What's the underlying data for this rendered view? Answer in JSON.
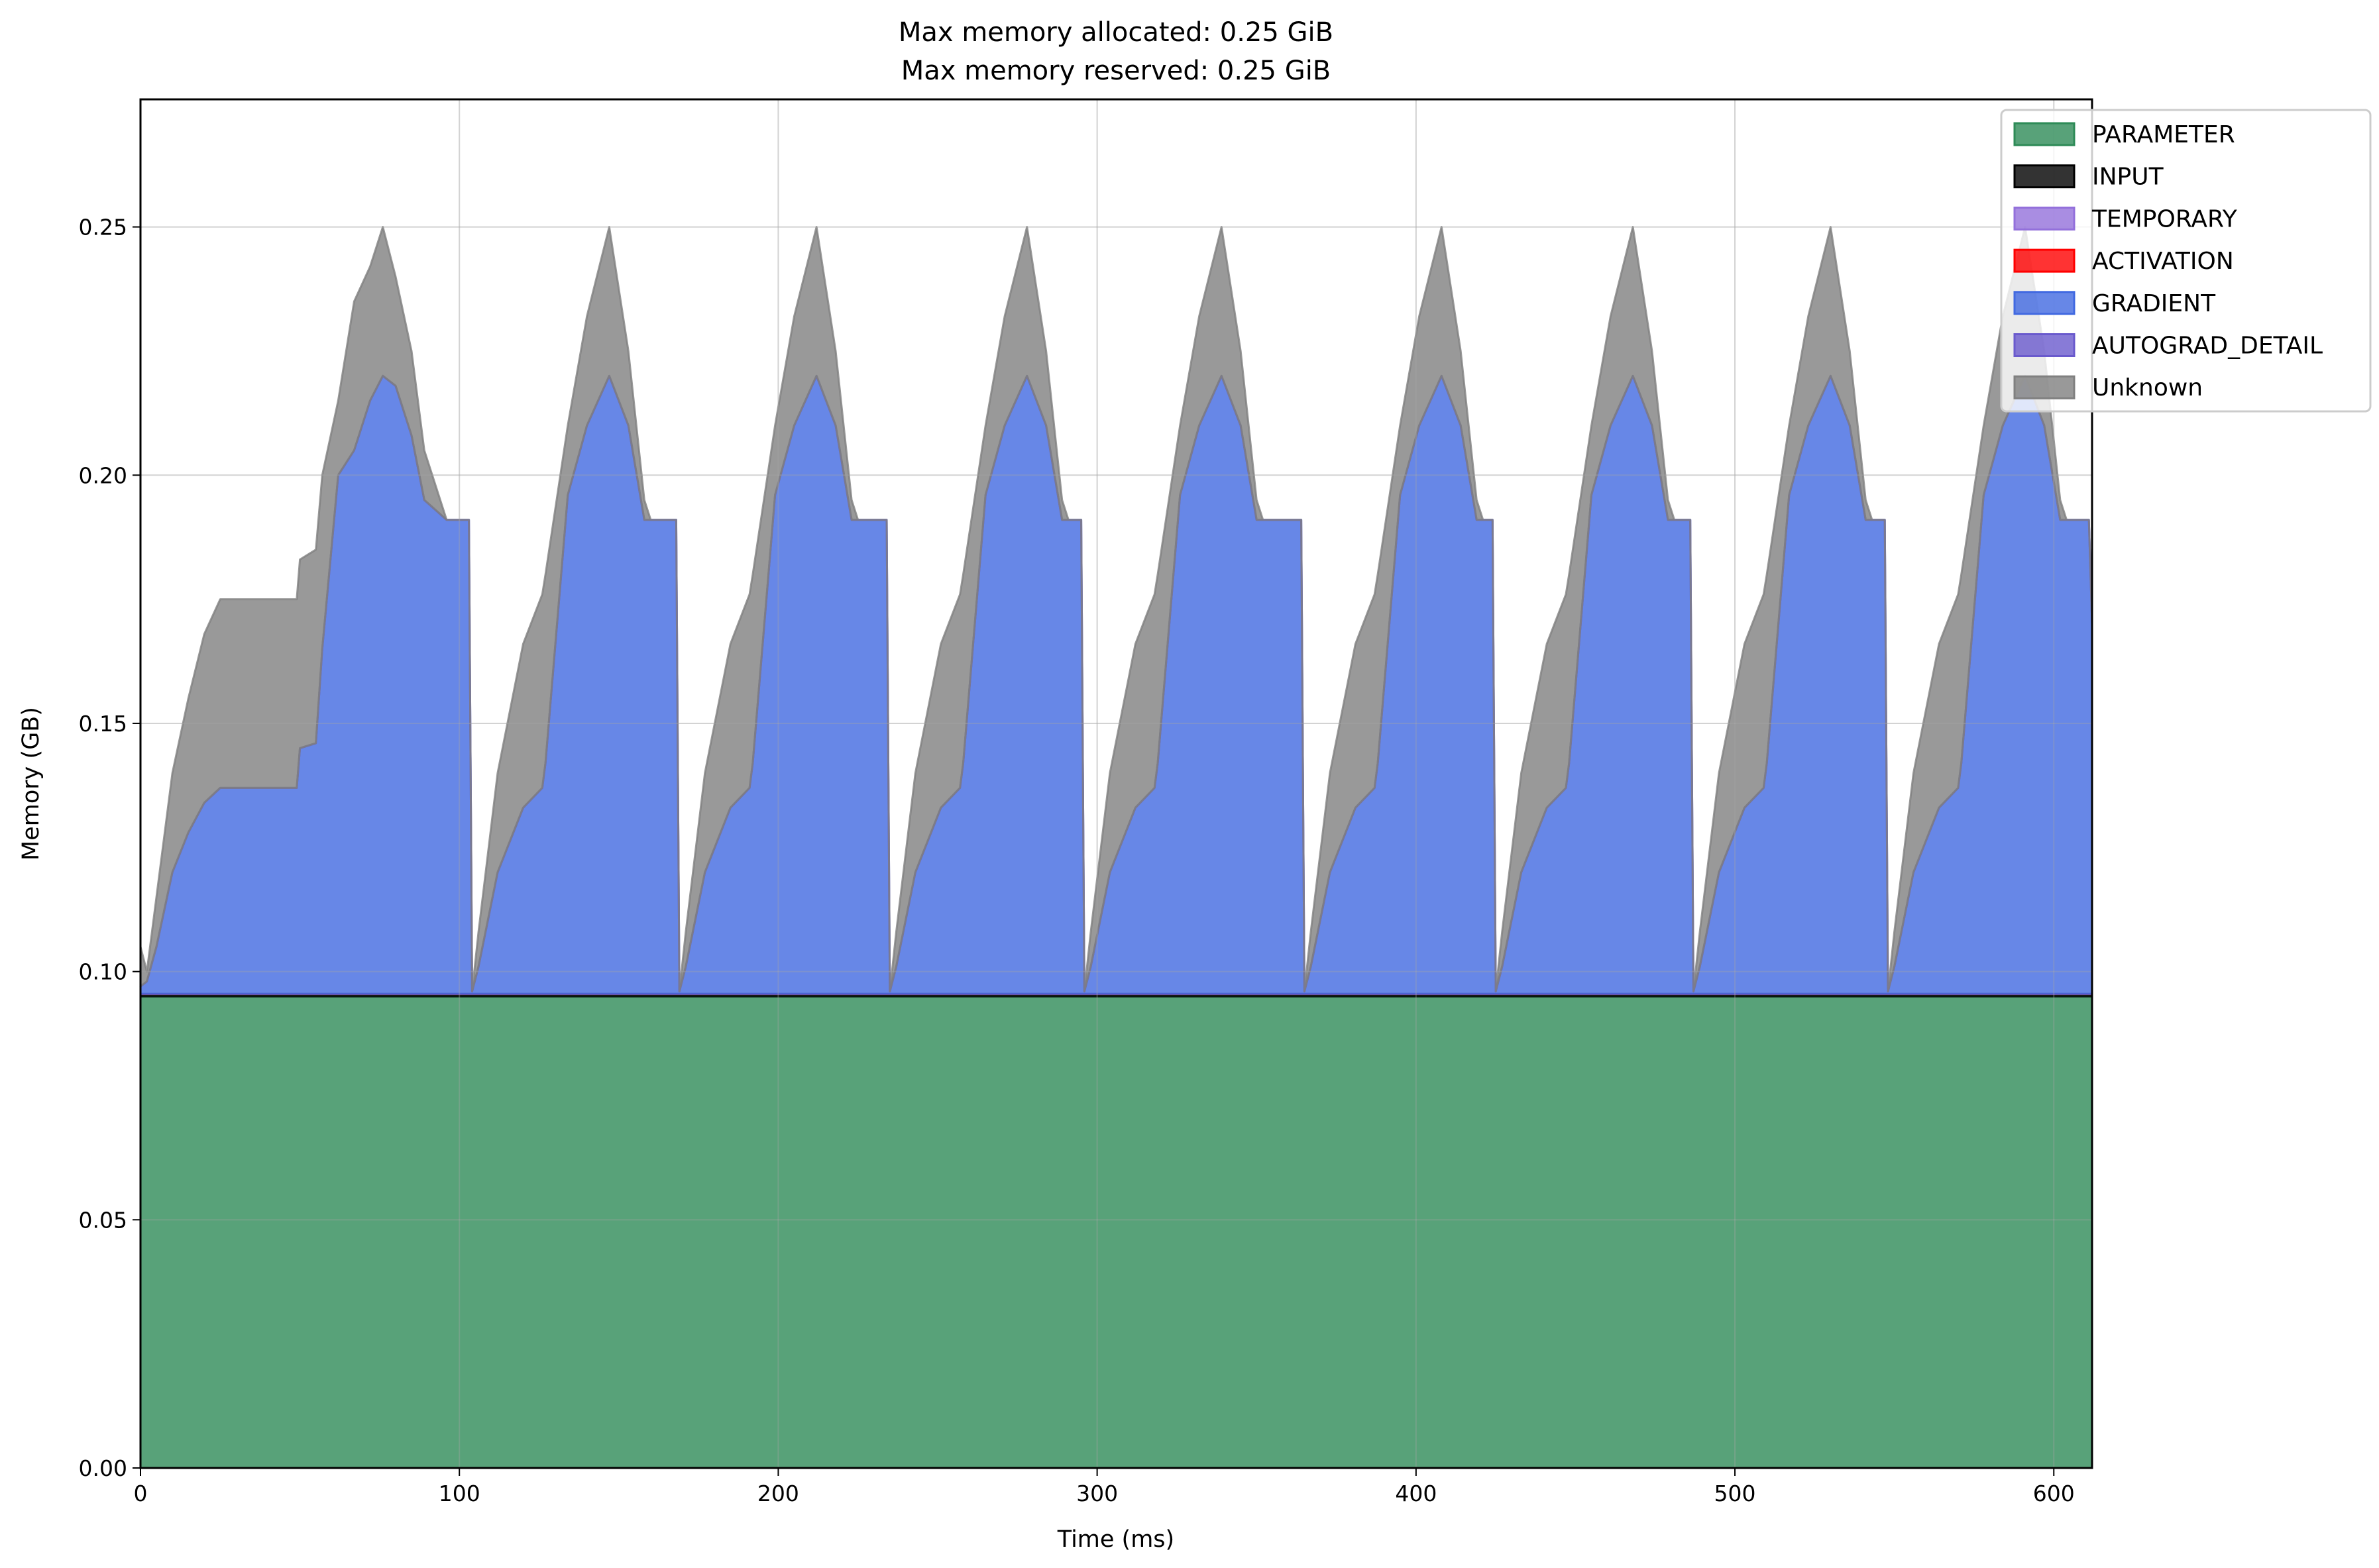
{
  "chart_data": {
    "type": "area",
    "stacked": true,
    "title": [
      "Max memory allocated: 0.25 GiB",
      "Max memory reserved: 0.25 GiB"
    ],
    "xlabel": "Time (ms)",
    "ylabel": "Memory (GB)",
    "xlim": [
      0,
      612
    ],
    "ylim": [
      0,
      0.2757
    ],
    "xticks": [
      "0",
      "100",
      "200",
      "300",
      "400",
      "500",
      "600"
    ],
    "xtick_values": [
      0,
      100,
      200,
      300,
      400,
      500,
      600
    ],
    "yticks": [
      "0.00",
      "0.05",
      "0.10",
      "0.15",
      "0.20",
      "0.25"
    ],
    "ytick_values": [
      0,
      0.05,
      0.1,
      0.15,
      0.2,
      0.25
    ],
    "grid": true,
    "legend_position": "top-right",
    "x": [
      0,
      2,
      5,
      10,
      15,
      20,
      25,
      49,
      50,
      55,
      57,
      62,
      67,
      72,
      76,
      80,
      85,
      89,
      96,
      103,
      104,
      106,
      112,
      120,
      126,
      127,
      134,
      140,
      147,
      153,
      158,
      160,
      168,
      169,
      171,
      177,
      185,
      191,
      192,
      199,
      205,
      212,
      218,
      223,
      225,
      234,
      235,
      237,
      243,
      251,
      257,
      258,
      265,
      271,
      278,
      284,
      289,
      291,
      295,
      296,
      298,
      304,
      312,
      318,
      319,
      326,
      332,
      339,
      345,
      350,
      352,
      364,
      365,
      367,
      373,
      381,
      387,
      388,
      395,
      401,
      408,
      414,
      419,
      421,
      424,
      425,
      427,
      433,
      441,
      447,
      448,
      455,
      461,
      468,
      474,
      479,
      481,
      486,
      487,
      489,
      495,
      503,
      509,
      510,
      517,
      523,
      530,
      536,
      541,
      543,
      547,
      548,
      550,
      556,
      564,
      570,
      571,
      578,
      584,
      591,
      597,
      602,
      604,
      611,
      612
    ],
    "series": [
      {
        "name": "PARAMETER",
        "color": "#2e8b57",
        "values": 0.095
      },
      {
        "name": "INPUT",
        "color": "#000000",
        "values": 0.0005
      },
      {
        "name": "TEMPORARY",
        "color": "#9370db",
        "values": 0
      },
      {
        "name": "ACTIVATION",
        "color": "#ff0000",
        "values": 0
      },
      {
        "name": "GRADIENT",
        "color": "#4169e1",
        "values": [
          0.0015,
          0.0025,
          0.0095,
          0.0245,
          0.0325,
          0.0385,
          0.0415,
          0.0415,
          0.0495,
          0.0505,
          0.0695,
          0.1045,
          0.1095,
          0.1195,
          0.1245,
          0.1225,
          0.1125,
          0.0995,
          0.0955,
          0.0955,
          0.0005,
          0.0055,
          0.0245,
          0.0375,
          0.0415,
          0.0465,
          0.1005,
          0.1145,
          0.1245,
          0.1145,
          0.0955,
          0.0955,
          0.0955,
          0.0005,
          0.0055,
          0.0245,
          0.0375,
          0.0415,
          0.0465,
          0.1005,
          0.1145,
          0.1245,
          0.1145,
          0.0955,
          0.0955,
          0.0955,
          0.0005,
          0.0055,
          0.0245,
          0.0375,
          0.0415,
          0.0465,
          0.1005,
          0.1145,
          0.1245,
          0.1145,
          0.0955,
          0.0955,
          0.0955,
          0.0005,
          0.0055,
          0.0245,
          0.0375,
          0.0415,
          0.0465,
          0.1005,
          0.1145,
          0.1245,
          0.1145,
          0.0955,
          0.0955,
          0.0955,
          0.0005,
          0.0055,
          0.0245,
          0.0375,
          0.0415,
          0.0465,
          0.1005,
          0.1145,
          0.1245,
          0.1145,
          0.0955,
          0.0955,
          0.0955,
          0.0005,
          0.0055,
          0.0245,
          0.0375,
          0.0415,
          0.0465,
          0.1005,
          0.1145,
          0.1245,
          0.1145,
          0.0955,
          0.0955,
          0.0955,
          0.0005,
          0.0055,
          0.0245,
          0.0375,
          0.0415,
          0.0465,
          0.1005,
          0.1145,
          0.1245,
          0.1145,
          0.0955,
          0.0955,
          0.0955,
          0.0005,
          0.0055,
          0.0245,
          0.0375,
          0.0415,
          0.0465,
          0.1005,
          0.1145,
          0.1245,
          0.1145,
          0.0955,
          0.0955,
          0.0955,
          0.0745
        ]
      },
      {
        "name": "AUTOGRAD_DETAIL",
        "color": "#6a5acd",
        "values": 0
      },
      {
        "name": "Unknown",
        "color": "#808080",
        "values": [
          0.008,
          0.002,
          0.01,
          0.02,
          0.027,
          0.034,
          0.038,
          0.038,
          0.038,
          0.039,
          0.035,
          0.015,
          0.03,
          0.027,
          0.03,
          0.022,
          0.017,
          0.01,
          0,
          0,
          0,
          0.007,
          0.02,
          0.033,
          0.039,
          0.038,
          0.014,
          0.022,
          0.03,
          0.015,
          0.004,
          0,
          0,
          0,
          0.007,
          0.02,
          0.033,
          0.039,
          0.038,
          0.014,
          0.022,
          0.03,
          0.015,
          0.004,
          0,
          0,
          0,
          0.007,
          0.02,
          0.033,
          0.039,
          0.038,
          0.014,
          0.022,
          0.03,
          0.015,
          0.004,
          0,
          0,
          0,
          0.007,
          0.02,
          0.033,
          0.039,
          0.038,
          0.014,
          0.022,
          0.03,
          0.015,
          0.004,
          0,
          0,
          0,
          0.007,
          0.02,
          0.033,
          0.039,
          0.038,
          0.014,
          0.022,
          0.03,
          0.015,
          0.004,
          0,
          0,
          0,
          0.007,
          0.02,
          0.033,
          0.039,
          0.038,
          0.014,
          0.022,
          0.03,
          0.015,
          0.004,
          0,
          0,
          0,
          0.007,
          0.02,
          0.033,
          0.039,
          0.038,
          0.014,
          0.022,
          0.03,
          0.015,
          0.004,
          0,
          0,
          0,
          0.007,
          0.02,
          0.033,
          0.039,
          0.038,
          0.014,
          0.022,
          0.03,
          0.015,
          0.004,
          0,
          0,
          0
        ]
      }
    ]
  }
}
